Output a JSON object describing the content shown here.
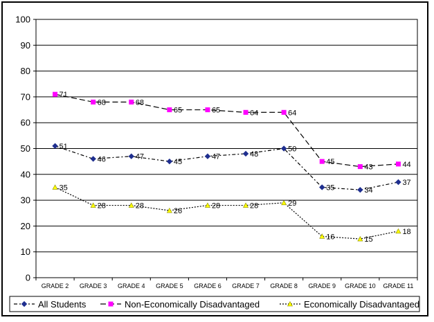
{
  "chart_data": {
    "type": "line",
    "title": "",
    "xlabel": "",
    "ylabel": "",
    "ylim": [
      0,
      100
    ],
    "yticks": [
      0,
      10,
      20,
      30,
      40,
      50,
      60,
      70,
      80,
      90,
      100
    ],
    "grid": "horizontal",
    "legend_position": "bottom",
    "categories": [
      "GRADE 2",
      "GRADE 3",
      "GRADE 4",
      "GRADE 5",
      "GRADE 6",
      "GRADE 7",
      "GRADE 8",
      "GRADE 9",
      "GRADE 10",
      "GRADE 11"
    ],
    "series": [
      {
        "name": "All Students",
        "values": [
          51,
          46,
          47,
          45,
          47,
          48,
          50,
          35,
          34,
          37
        ],
        "color": "#1f2f8f",
        "marker": "diamond",
        "dash": "dash-dot"
      },
      {
        "name": "Non-Economically Disadvantaged",
        "values": [
          71,
          68,
          68,
          65,
          65,
          64,
          64,
          45,
          43,
          44
        ],
        "color": "#ff00ff",
        "marker": "square",
        "dash": "long-dash"
      },
      {
        "name": "Economically Disadvantaged",
        "values": [
          35,
          28,
          28,
          26,
          28,
          28,
          29,
          16,
          15,
          18
        ],
        "color": "#ffff00",
        "marker": "triangle",
        "dash": "dotted"
      }
    ]
  }
}
